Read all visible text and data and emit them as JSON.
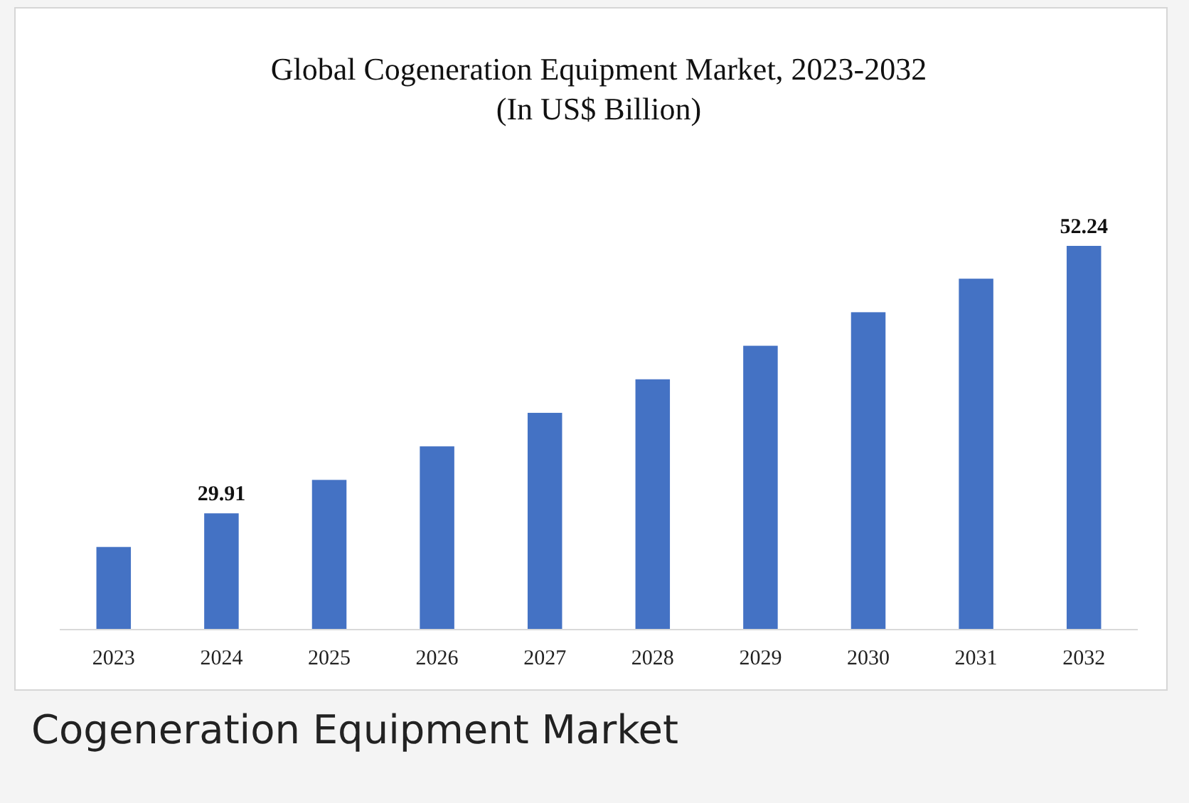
{
  "chart_data": {
    "type": "bar",
    "title": "Global Cogeneration Equipment Market, 2023-2032",
    "subtitle": "(In US$ Billion)",
    "categories": [
      "2023",
      "2024",
      "2025",
      "2026",
      "2027",
      "2028",
      "2029",
      "2030",
      "2031",
      "2032"
    ],
    "values": [
      27.1,
      29.91,
      32.7,
      35.5,
      38.3,
      41.1,
      43.9,
      46.7,
      49.5,
      52.24
    ],
    "value_labels": [
      null,
      "29.91",
      null,
      null,
      null,
      null,
      null,
      null,
      null,
      "52.24"
    ],
    "color": "#4472c4",
    "ylim": [
      20.2,
      52.24
    ],
    "tick_labels": "x",
    "annotations": [
      "Cogeneration Equipment Market"
    ]
  }
}
